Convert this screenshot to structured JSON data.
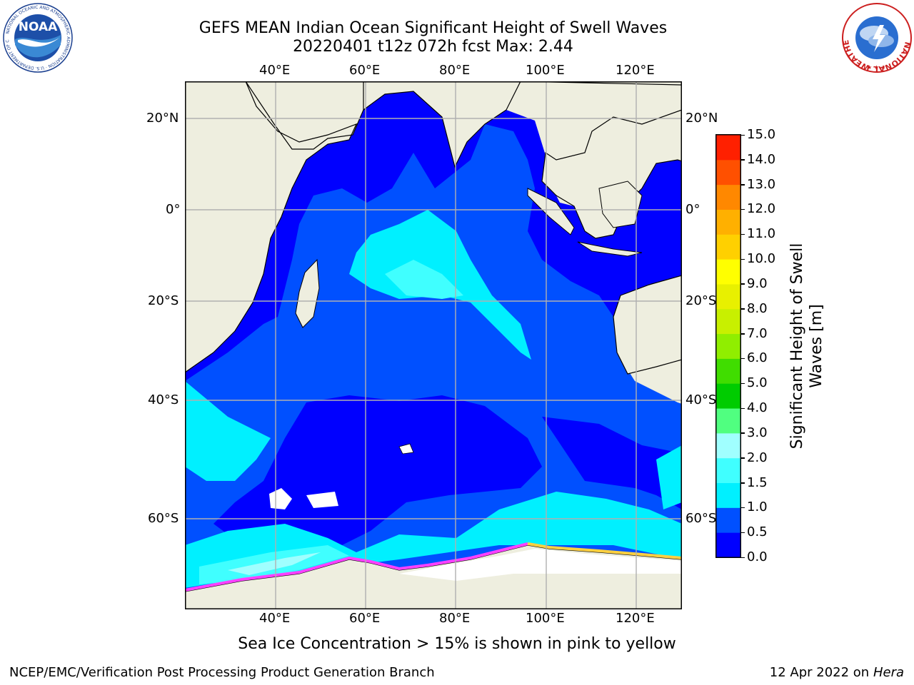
{
  "title": {
    "line1": "GEFS MEAN Indian Ocean Significant Height of Swell Waves",
    "line2": "20220401 t12z 072h fcst   Max: 2.44"
  },
  "map": {
    "top_lon_labels": [
      "40°E",
      "60°E",
      "80°E",
      "100°E",
      "120°E"
    ],
    "bottom_lon_labels": [
      "40°E",
      "60°E",
      "80°E",
      "100°E",
      "120°E"
    ],
    "left_lat_labels": [
      "20°N",
      "0°",
      "20°S",
      "40°S",
      "60°S"
    ],
    "right_lat_labels": [
      "20°N",
      "0°",
      "20°S",
      "40°S",
      "60°S"
    ],
    "colors": {
      "land": "#eeeedf",
      "grid": "#b0b0b0",
      "ice_white": "#ffffff"
    }
  },
  "colorbar": {
    "label": "Significant Height of Swell Waves [m]",
    "ticks": [
      "0.0",
      "0.5",
      "1.0",
      "1.5",
      "2.0",
      "3.0",
      "4.0",
      "5.0",
      "6.0",
      "7.0",
      "8.0",
      "9.0",
      "10.0",
      "11.0",
      "12.0",
      "13.0",
      "14.0",
      "15.0"
    ],
    "colors": [
      "#0000ff",
      "#0050ff",
      "#00f0ff",
      "#40ffff",
      "#a0ffff",
      "#50ff80",
      "#00cc00",
      "#40dd00",
      "#90ee00",
      "#c8f000",
      "#e8f000",
      "#ffff00",
      "#ffd000",
      "#ffb000",
      "#ff8800",
      "#ff5000",
      "#ff2000"
    ]
  },
  "caption": "Sea Ice Concentration > 15% is shown in pink to yellow",
  "footer": {
    "left": "NCEP/EMC/Verification Post Processing Product Generation Branch",
    "date": "12 Apr 2022 on ",
    "machine": "Hera"
  },
  "logos": {
    "noaa": "NOAA",
    "noaa_ring": "NATIONAL OCEANIC AND ATMOSPHERIC ADMINISTRATION · U.S. DEPARTMENT OF COMMERCE",
    "nws_ring": "NATIONAL WEATHER SERVICE"
  }
}
